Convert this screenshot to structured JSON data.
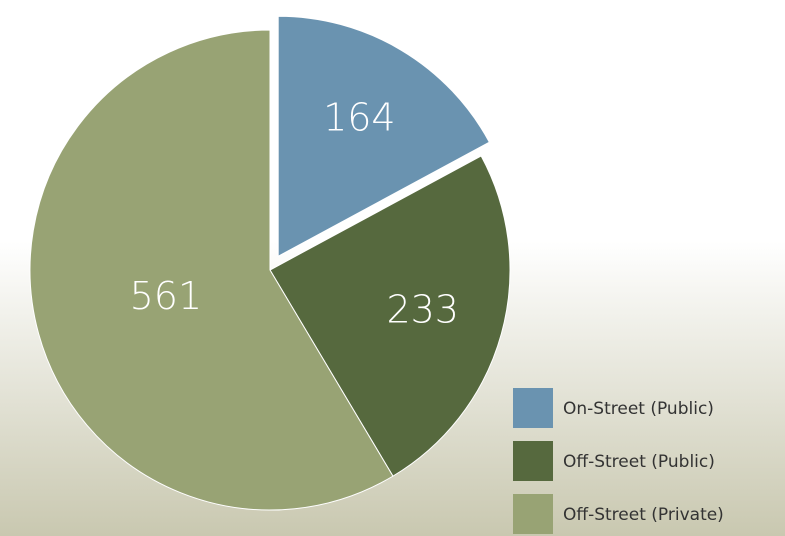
{
  "chart_data": {
    "type": "pie",
    "categories": [
      "On-Street (Public)",
      "Off-Street (Public)",
      "Off-Street (Private)"
    ],
    "values": [
      164,
      233,
      561
    ],
    "colors": [
      "#6a93b0",
      "#56693e",
      "#98a374"
    ],
    "exploded": [
      true,
      false,
      false
    ],
    "legend": "bottom-right"
  }
}
